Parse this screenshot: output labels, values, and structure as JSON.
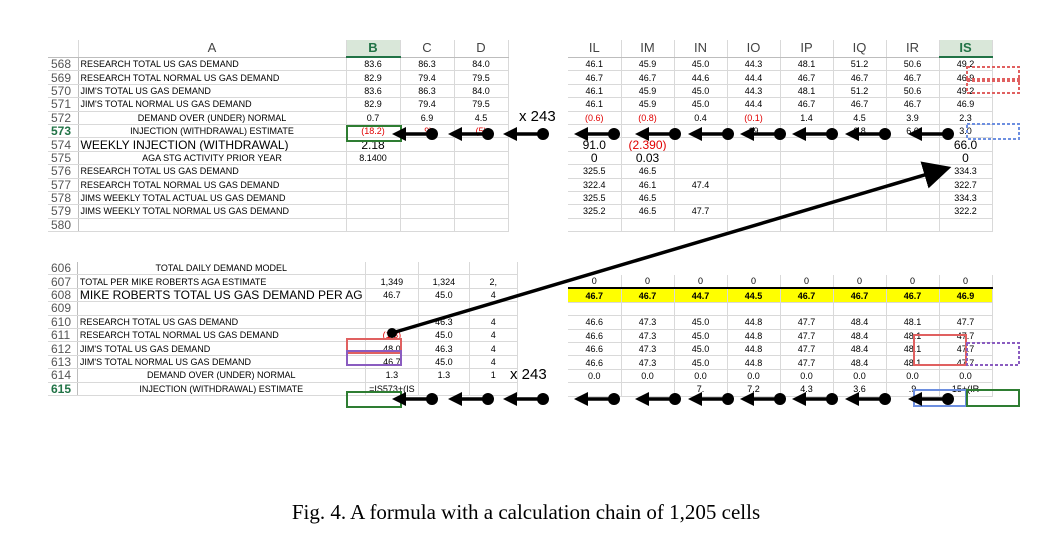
{
  "left_top": {
    "columns": [
      "A",
      "B",
      "C",
      "D"
    ],
    "rows": [
      {
        "rn": "568",
        "label": "RESEARCH TOTAL US GAS DEMAND",
        "b": "83.6",
        "c": "86.3",
        "d": "84.0"
      },
      {
        "rn": "569",
        "label": "RESEARCH TOTAL NORMAL US GAS DEMAND",
        "b": "82.9",
        "c": "79.4",
        "d": "79.5"
      },
      {
        "rn": "570",
        "label": "JIM'S TOTAL US GAS DEMAND",
        "b": "83.6",
        "c": "86.3",
        "d": "84.0"
      },
      {
        "rn": "571",
        "label": "JIM'S TOTAL NORMAL US GAS DEMAND",
        "b": "82.9",
        "c": "79.4",
        "d": "79.5"
      },
      {
        "rn": "572",
        "label": "DEMAND OVER (UNDER) NORMAL",
        "b": "0.7",
        "c": "6.9",
        "d": "4.5"
      },
      {
        "rn": "573",
        "label": "INJECTION (WITHDRAWAL) ESTIMATE",
        "b": "(18.2)",
        "c": ".9)",
        "d": "(5)"
      },
      {
        "rn": "574",
        "label": "WEEKLY INJECTION (WITHDRAWAL)",
        "b": "2.18",
        "c": "",
        "d": ""
      },
      {
        "rn": "575",
        "label": "AGA STG ACTIVITY PRIOR YEAR",
        "b": "8.1400",
        "c": "",
        "d": ""
      },
      {
        "rn": "576",
        "label": "RESEARCH TOTAL US GAS DEMAND",
        "b": "",
        "c": "",
        "d": ""
      },
      {
        "rn": "577",
        "label": "RESEARCH TOTAL NORMAL US GAS DEMAND",
        "b": "",
        "c": "",
        "d": ""
      },
      {
        "rn": "578",
        "label": "JIMS WEEKLY TOTAL ACTUAL US GAS DEMAND",
        "b": "",
        "c": "",
        "d": ""
      },
      {
        "rn": "579",
        "label": "JIMS WEEKLY TOTAL NORMAL US GAS DEMAND",
        "b": "",
        "c": "",
        "d": ""
      },
      {
        "rn": "580",
        "label": "",
        "b": "",
        "c": "",
        "d": ""
      }
    ]
  },
  "right_top": {
    "columns": [
      "IL",
      "IM",
      "IN",
      "IO",
      "IP",
      "IQ",
      "IR",
      "IS"
    ],
    "rows": [
      [
        "46.1",
        "45.9",
        "45.0",
        "44.3",
        "48.1",
        "51.2",
        "50.6",
        "49.2"
      ],
      [
        "46.7",
        "46.7",
        "44.6",
        "44.4",
        "46.7",
        "46.7",
        "46.7",
        "46.9"
      ],
      [
        "46.1",
        "45.9",
        "45.0",
        "44.3",
        "48.1",
        "51.2",
        "50.6",
        "49.2"
      ],
      [
        "46.1",
        "45.9",
        "45.0",
        "44.4",
        "46.7",
        "46.7",
        "46.7",
        "46.9"
      ],
      [
        "(0.6)",
        "(0.8)",
        "0.4",
        "(0.1)",
        "1.4",
        "4.5",
        "3.9",
        "2.3"
      ],
      [
        "",
        "",
        "",
        "19",
        "",
        "6.8",
        "6.6",
        "3.0"
      ],
      [
        "91.0",
        "(2.390)",
        "",
        "",
        "",
        "",
        "",
        "66.0"
      ],
      [
        "0",
        "0.03",
        "",
        "",
        "",
        "",
        "",
        "0"
      ],
      [
        "325.5",
        "46.5",
        "",
        "",
        "",
        "",
        "",
        "334.3"
      ],
      [
        "322.4",
        "46.1",
        "47.4",
        "",
        "",
        "",
        "",
        "322.7"
      ],
      [
        "325.5",
        "46.5",
        "",
        "",
        "",
        "",
        "",
        "334.3"
      ],
      [
        "325.2",
        "46.5",
        "47.7",
        "",
        "",
        "",
        "",
        "322.2"
      ],
      [
        "",
        "",
        "",
        "",
        "",
        "",
        "",
        ""
      ]
    ]
  },
  "left_bottom": {
    "rows": [
      {
        "rn": "606",
        "label": "TOTAL DAILY DEMAND MODEL",
        "b": "",
        "c": "",
        "d": ""
      },
      {
        "rn": "607",
        "label": "TOTAL PER MIKE ROBERTS AGA ESTIMATE",
        "b": "1,349",
        "c": "1,324",
        "d": "2,"
      },
      {
        "rn": "608",
        "label": "MIKE ROBERTS TOTAL US GAS DEMAND PER AG",
        "b": "46.7",
        "c": "45.0",
        "d": "4"
      },
      {
        "rn": "609",
        "label": "",
        "b": "",
        "c": "",
        "d": ""
      },
      {
        "rn": "610",
        "label": "RESEARCH TOTAL US GAS DEMAND",
        "b": "",
        "c": "46.3",
        "d": "4"
      },
      {
        "rn": "611",
        "label": "RESEARCH TOTAL NORMAL US GAS DEMAND",
        "b": "(1.3)",
        "c": "45.0",
        "d": "4"
      },
      {
        "rn": "612",
        "label": "JIM'S TOTAL US GAS DEMAND",
        "b": "48.0",
        "c": "46.3",
        "d": "4"
      },
      {
        "rn": "613",
        "label": "JIM'S TOTAL NORMAL US GAS DEMAND",
        "b": "46.7",
        "c": "45.0",
        "d": "4"
      },
      {
        "rn": "614",
        "label": "DEMAND OVER (UNDER) NORMAL",
        "b": "1.3",
        "c": "1.3",
        "d": "1"
      },
      {
        "rn": "615",
        "label": "INJECTION (WITHDRAWAL) ESTIMATE",
        "b": "=IS573+(IS",
        "c": "",
        "d": ""
      }
    ]
  },
  "right_bottom": {
    "rows": [
      [
        "0",
        "0",
        "0",
        "0",
        "0",
        "0",
        "0",
        "0"
      ],
      [
        "46.7",
        "46.7",
        "44.7",
        "44.5",
        "46.7",
        "46.7",
        "46.7",
        "46.9"
      ],
      [
        "",
        "",
        "",
        "",
        "",
        "",
        "",
        ""
      ],
      [
        "46.6",
        "47.3",
        "45.0",
        "44.8",
        "47.7",
        "48.4",
        "48.1",
        "47.7"
      ],
      [
        "46.6",
        "47.3",
        "45.0",
        "44.8",
        "47.7",
        "48.4",
        "48.1",
        "47.7"
      ],
      [
        "46.6",
        "47.3",
        "45.0",
        "44.8",
        "47.7",
        "48.4",
        "48.1",
        "47.7"
      ],
      [
        "46.6",
        "47.3",
        "45.0",
        "44.8",
        "47.7",
        "48.4",
        "48.1",
        "47.7"
      ],
      [
        "0.0",
        "0.0",
        "0.0",
        "0.0",
        "0.0",
        "0.0",
        "0.0",
        "0.0"
      ],
      [
        "",
        "",
        "7.",
        "7.2",
        "4.3",
        "3.6",
        ".9",
        "15+(IR"
      ]
    ]
  },
  "multipliers": {
    "top": "x 243",
    "bottom": "x 243"
  },
  "caption": "Fig. 4.   A formula with a calculation chain of 1,205 cells",
  "colors": {
    "selected_header": "#217346",
    "highlight_yellow": "#ffff00",
    "red_text": "#e00000",
    "trace_box_red": "#e06060",
    "trace_box_purple": "#8a5cc0",
    "trace_box_blue": "#6d8fe0",
    "trace_box_green": "#2e7d32"
  }
}
